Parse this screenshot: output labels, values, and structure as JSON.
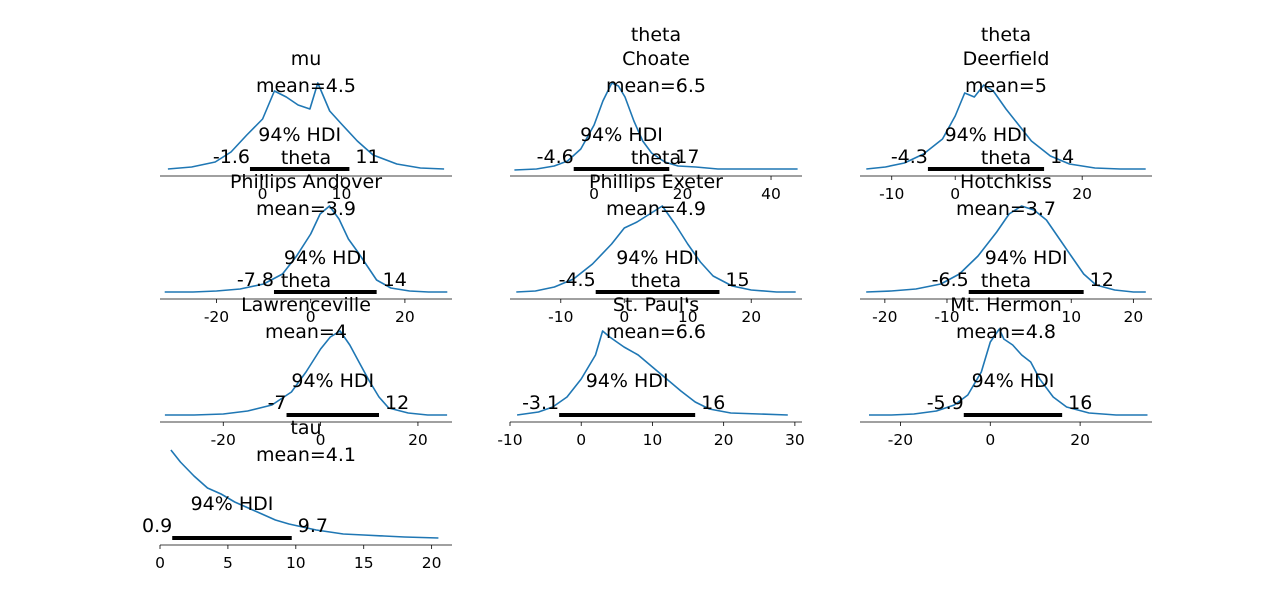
{
  "chart_data": [
    {
      "type": "line",
      "title_lines": [
        "mu"
      ],
      "mean_label": "mean=4.5",
      "hdi_label": "94% HDI",
      "hdi_low_label": "-1.6",
      "hdi_high_label": "11",
      "hdi": [
        -1.6,
        11
      ],
      "xlim": [
        -13,
        24
      ],
      "xticks": [
        0,
        10
      ],
      "x": [
        -12,
        -9,
        -6,
        -4,
        -2,
        0,
        1.5,
        3,
        4.5,
        6,
        7,
        8.5,
        10,
        12,
        14,
        17,
        20,
        23
      ],
      "density": [
        0.02,
        0.04,
        0.09,
        0.19,
        0.36,
        0.52,
        0.8,
        0.74,
        0.66,
        0.62,
        0.88,
        0.6,
        0.47,
        0.3,
        0.16,
        0.07,
        0.03,
        0.02
      ]
    },
    {
      "type": "line",
      "title_lines": [
        "theta",
        "Choate"
      ],
      "mean_label": "mean=6.5",
      "hdi_label": "94% HDI",
      "hdi_low_label": "-4.6",
      "hdi_high_label": "17",
      "hdi": [
        -4.6,
        17
      ],
      "xlim": [
        -19,
        47
      ],
      "xticks": [
        0,
        20,
        40
      ],
      "x": [
        -18,
        -13,
        -9,
        -6,
        -3,
        0,
        2,
        4,
        5.5,
        7,
        9,
        11,
        13,
        16,
        19,
        23,
        28,
        35,
        46
      ],
      "density": [
        0.01,
        0.02,
        0.05,
        0.1,
        0.22,
        0.46,
        0.7,
        0.88,
        0.85,
        0.74,
        0.5,
        0.3,
        0.18,
        0.09,
        0.05,
        0.04,
        0.02,
        0.02,
        0.02
      ]
    },
    {
      "type": "line",
      "title_lines": [
        "theta",
        "Deerfield"
      ],
      "mean_label": "mean=5",
      "hdi_label": "94% HDI",
      "hdi_low_label": "-4.3",
      "hdi_high_label": "14",
      "hdi": [
        -4.3,
        14
      ],
      "xlim": [
        -15,
        31
      ],
      "xticks": [
        -10,
        0,
        20
      ],
      "x": [
        -14,
        -11,
        -8,
        -5,
        -2,
        0,
        1.5,
        3,
        4.5,
        6,
        8,
        10,
        12,
        15,
        18,
        22,
        26,
        30
      ],
      "density": [
        0.02,
        0.04,
        0.08,
        0.17,
        0.32,
        0.55,
        0.78,
        0.74,
        0.86,
        0.8,
        0.62,
        0.46,
        0.3,
        0.15,
        0.07,
        0.03,
        0.02,
        0.02
      ]
    },
    {
      "type": "line",
      "title_lines": [
        "theta",
        "Phillips Andover"
      ],
      "mean_label": "mean=3.9",
      "hdi_label": "94% HDI",
      "hdi_low_label": "-7.8",
      "hdi_high_label": "14",
      "hdi": [
        -7.8,
        14
      ],
      "xlim": [
        -32,
        30
      ],
      "xticks": [
        -20,
        0,
        20
      ],
      "x": [
        -31,
        -25,
        -20,
        -15,
        -10,
        -6,
        -3,
        0,
        2,
        4,
        6,
        8,
        10,
        12,
        14,
        17,
        21,
        25,
        29
      ],
      "density": [
        0.02,
        0.02,
        0.03,
        0.05,
        0.1,
        0.2,
        0.38,
        0.6,
        0.8,
        0.88,
        0.75,
        0.55,
        0.42,
        0.28,
        0.14,
        0.06,
        0.03,
        0.02,
        0.02
      ]
    },
    {
      "type": "line",
      "title_lines": [
        "theta",
        "Phillips Exeter"
      ],
      "mean_label": "mean=4.9",
      "hdi_label": "94% HDI",
      "hdi_low_label": "-4.5",
      "hdi_high_label": "15",
      "hdi": [
        -4.5,
        15
      ],
      "xlim": [
        -18,
        28
      ],
      "xticks": [
        -10,
        0,
        10,
        20
      ],
      "x": [
        -17,
        -14,
        -11,
        -8,
        -5,
        -2,
        0,
        2,
        4,
        6,
        8,
        10,
        12,
        14,
        17,
        20,
        24,
        27
      ],
      "density": [
        0.02,
        0.03,
        0.07,
        0.15,
        0.3,
        0.5,
        0.66,
        0.72,
        0.8,
        0.88,
        0.7,
        0.5,
        0.32,
        0.18,
        0.08,
        0.04,
        0.02,
        0.02
      ]
    },
    {
      "type": "line",
      "title_lines": [
        "theta",
        "Hotchkiss"
      ],
      "mean_label": "mean=3.7",
      "hdi_label": "94% HDI",
      "hdi_low_label": "-6.5",
      "hdi_high_label": "12",
      "hdi": [
        -6.5,
        12
      ],
      "xlim": [
        -24,
        23
      ],
      "xticks": [
        -20,
        -10,
        10,
        20
      ],
      "x": [
        -23,
        -19,
        -15,
        -11,
        -8,
        -5,
        -2,
        0,
        2,
        4,
        6,
        8,
        10,
        12,
        14,
        17,
        20,
        22
      ],
      "density": [
        0.02,
        0.03,
        0.05,
        0.1,
        0.2,
        0.38,
        0.62,
        0.8,
        0.88,
        0.84,
        0.74,
        0.56,
        0.38,
        0.2,
        0.09,
        0.04,
        0.02,
        0.02
      ]
    },
    {
      "type": "line",
      "title_lines": [
        "theta",
        "Lawrenceville"
      ],
      "mean_label": "mean=4",
      "hdi_label": "94% HDI",
      "hdi_low_label": "-7",
      "hdi_high_label": "12",
      "hdi": [
        -7,
        12
      ],
      "xlim": [
        -33,
        27
      ],
      "xticks": [
        -20,
        0,
        20
      ],
      "x": [
        -32,
        -26,
        -20,
        -15,
        -10,
        -6,
        -3,
        0,
        2,
        4,
        6,
        8,
        10,
        12,
        14,
        18,
        22,
        26
      ],
      "density": [
        0.02,
        0.02,
        0.03,
        0.06,
        0.12,
        0.25,
        0.45,
        0.68,
        0.8,
        0.86,
        0.72,
        0.54,
        0.36,
        0.2,
        0.09,
        0.04,
        0.02,
        0.02
      ]
    },
    {
      "type": "line",
      "title_lines": [
        "theta",
        "St. Paul's"
      ],
      "mean_label": "mean=6.6",
      "hdi_label": "94% HDI",
      "hdi_low_label": "-3.1",
      "hdi_high_label": "16",
      "hdi": [
        -3.1,
        16
      ],
      "xlim": [
        -10,
        31
      ],
      "xticks": [
        -10,
        0,
        10,
        20,
        30
      ],
      "x": [
        -9,
        -6,
        -4,
        -2,
        0,
        2,
        3,
        4,
        6,
        8,
        10,
        12,
        14,
        16,
        18,
        21,
        25,
        29
      ],
      "density": [
        0.02,
        0.05,
        0.1,
        0.2,
        0.38,
        0.62,
        0.86,
        0.8,
        0.7,
        0.62,
        0.5,
        0.38,
        0.26,
        0.15,
        0.08,
        0.04,
        0.03,
        0.02
      ]
    },
    {
      "type": "line",
      "title_lines": [
        "theta",
        "Mt. Hermon"
      ],
      "mean_label": "mean=4.8",
      "hdi_label": "94% HDI",
      "hdi_low_label": "-5.9",
      "hdi_high_label": "16",
      "hdi": [
        -5.9,
        16
      ],
      "xlim": [
        -29,
        36
      ],
      "xticks": [
        -20,
        0,
        20
      ],
      "x": [
        -27,
        -22,
        -17,
        -12,
        -8,
        -5,
        -2,
        0,
        2,
        3,
        5,
        7,
        9,
        11,
        14,
        17,
        22,
        28,
        35
      ],
      "density": [
        0.02,
        0.02,
        0.03,
        0.06,
        0.12,
        0.22,
        0.45,
        0.75,
        0.88,
        0.78,
        0.72,
        0.62,
        0.55,
        0.38,
        0.2,
        0.1,
        0.04,
        0.02,
        0.02
      ]
    },
    {
      "type": "line",
      "title_lines": [
        "tau"
      ],
      "mean_label": "mean=4.1",
      "hdi_label": "94% HDI",
      "hdi_low_label": "0.9",
      "hdi_high_label": "9.7",
      "hdi": [
        0.9,
        9.7
      ],
      "xlim": [
        0,
        21.5
      ],
      "xticks": [
        0,
        5,
        10,
        15,
        20
      ],
      "x": [
        0.8,
        1.5,
        2.5,
        3.5,
        4.5,
        5.5,
        6.5,
        7.5,
        8.5,
        9.5,
        10.5,
        11.5,
        12.5,
        13.5,
        15,
        16.5,
        18,
        20.5
      ],
      "density": [
        0.9,
        0.78,
        0.64,
        0.52,
        0.46,
        0.38,
        0.32,
        0.26,
        0.2,
        0.16,
        0.13,
        0.1,
        0.08,
        0.06,
        0.05,
        0.04,
        0.03,
        0.02
      ]
    }
  ],
  "colors": {
    "line": "#1f77b4",
    "hdi_bar": "#000000"
  }
}
